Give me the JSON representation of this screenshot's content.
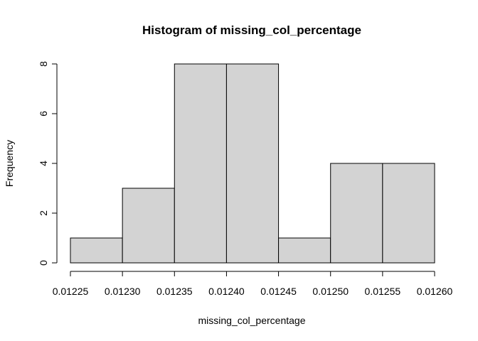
{
  "chart_data": {
    "type": "bar",
    "title": "Histogram of missing_col_percentage",
    "xlabel": "missing_col_percentage",
    "ylabel": "Frequency",
    "bins": [
      {
        "start": 0.01225,
        "end": 0.0123,
        "count": 1
      },
      {
        "start": 0.0123,
        "end": 0.01235,
        "count": 3
      },
      {
        "start": 0.01235,
        "end": 0.0124,
        "count": 8
      },
      {
        "start": 0.0124,
        "end": 0.01245,
        "count": 8
      },
      {
        "start": 0.01245,
        "end": 0.0125,
        "count": 1
      },
      {
        "start": 0.0125,
        "end": 0.01255,
        "count": 4
      },
      {
        "start": 0.01255,
        "end": 0.0126,
        "count": 4
      }
    ],
    "xticks": [
      "0.01225",
      "0.01230",
      "0.01235",
      "0.01240",
      "0.01245",
      "0.01250",
      "0.01255",
      "0.01260"
    ],
    "yticks": [
      "0",
      "2",
      "4",
      "6",
      "8"
    ],
    "xlim": [
      0.01225,
      0.0126
    ],
    "ylim": [
      0,
      8
    ],
    "bar_color": "#d3d3d3",
    "grid": false
  }
}
